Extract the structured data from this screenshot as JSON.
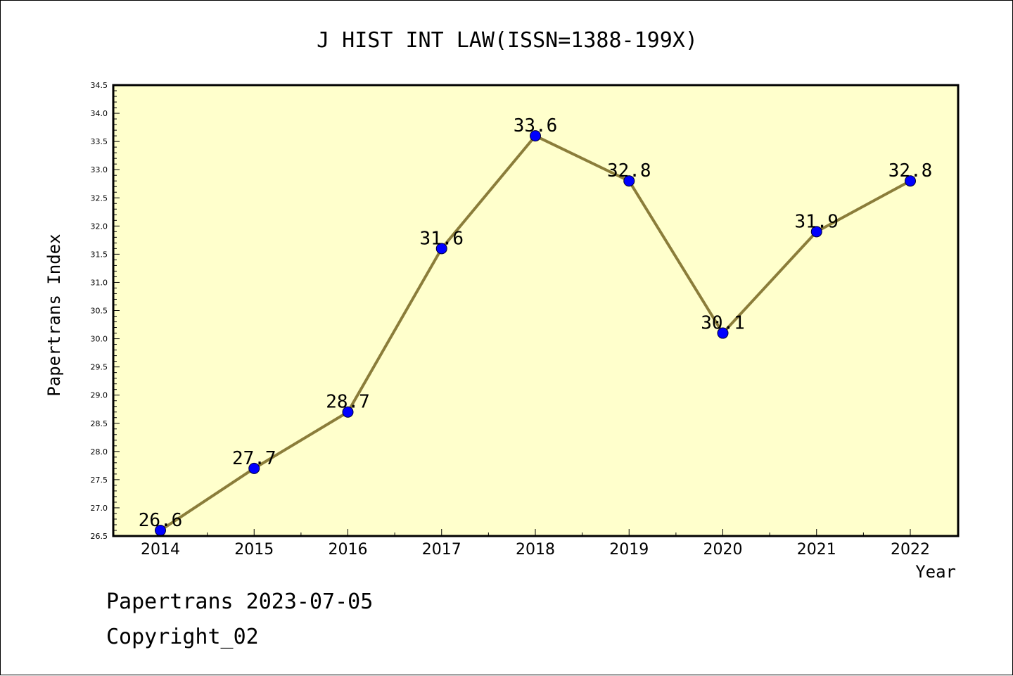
{
  "chart_data": {
    "type": "line",
    "title": "J HIST INT LAW(ISSN=1388-199X)",
    "xlabel": "Year",
    "ylabel": "Papertrans Index",
    "categories": [
      "2014",
      "2015",
      "2016",
      "2017",
      "2018",
      "2019",
      "2020",
      "2021",
      "2022"
    ],
    "series": [
      {
        "values": [
          26.6,
          27.7,
          28.7,
          31.6,
          33.6,
          32.8,
          30.1,
          31.9,
          32.8
        ]
      }
    ],
    "data_labels": [
      "26.6",
      "27.7",
      "28.7",
      "31.6",
      "33.6",
      "32.8",
      "30.1",
      "31.9",
      "32.8"
    ],
    "ylim": [
      26.5,
      34.5
    ],
    "yticks": [
      "26.5",
      "27.0",
      "27.5",
      "28.0",
      "28.5",
      "29.0",
      "29.5",
      "30.0",
      "30.5",
      "31.0",
      "31.5",
      "32.0",
      "32.5",
      "33.0",
      "33.5",
      "34.0",
      "34.5"
    ],
    "grid": false,
    "colors": {
      "plot_background": "#ffffcc",
      "line": "#8b7d3a",
      "marker": "#0000ff"
    }
  },
  "footer": {
    "line1": "Papertrans 2023-07-05",
    "line2": "Copyright_02"
  }
}
